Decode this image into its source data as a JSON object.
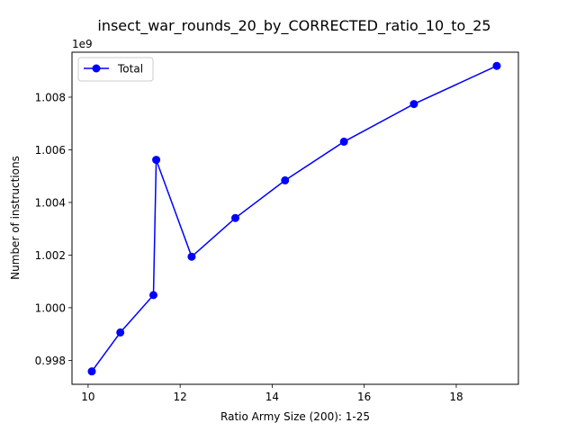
{
  "chart_data": {
    "type": "line",
    "title": "insect_war_rounds_20_by_CORRECTED_ratio_10_to_25",
    "xlabel": "Ratio Army Size (200): 1-25",
    "ylabel": "Number of instructions",
    "y_offset_label": "1e9",
    "xlim": [
      9.65,
      19.35
    ],
    "ylim": [
      0.99709,
      1.00971
    ],
    "xticks": [
      10,
      12,
      14,
      16,
      18
    ],
    "xtick_labels": [
      "10",
      "12",
      "14",
      "16",
      "18"
    ],
    "yticks": [
      0.998,
      1.0,
      1.002,
      1.004,
      1.006,
      1.008
    ],
    "ytick_labels": [
      "0.998",
      "1.000",
      "1.002",
      "1.004",
      "1.006",
      "1.008"
    ],
    "grid": false,
    "legend_position": "upper-left",
    "series": [
      {
        "name": "Total",
        "color": "#0000ff",
        "marker": "circle",
        "x": [
          10.08,
          10.7,
          11.42,
          11.48,
          12.25,
          13.2,
          14.28,
          15.56,
          17.08,
          18.88
        ],
        "y": [
          0.99758,
          0.99906,
          1.00048,
          1.00562,
          1.00194,
          1.00341,
          1.00484,
          1.00631,
          1.00774,
          1.00919
        ]
      }
    ]
  }
}
